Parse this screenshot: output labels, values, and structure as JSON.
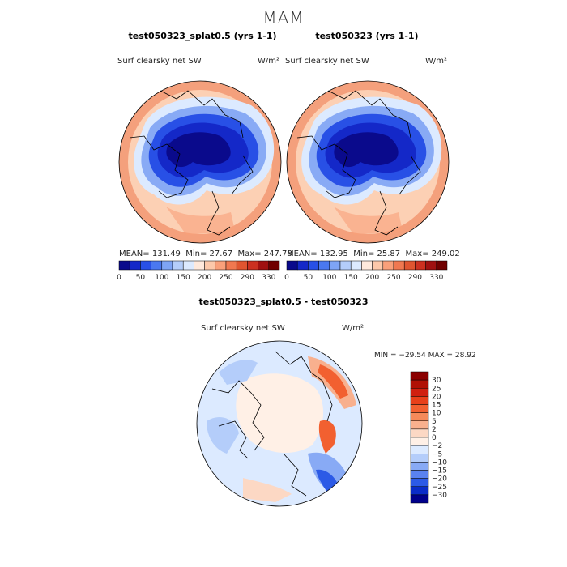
{
  "page": {
    "season_title": "MAM"
  },
  "panels": {
    "left": {
      "title": "test050323_splat0.5 (yrs 1-1)",
      "field_label": "Surf clearsky net SW",
      "units": "W/m²",
      "stats": {
        "mean_label": "MEAN=",
        "mean": "131.49",
        "min_label": "Min=",
        "min": "27.67",
        "max_label": "Max=",
        "max": "247.78"
      }
    },
    "right": {
      "title": "test050323 (yrs 1-1)",
      "field_label": "Surf clearsky net SW",
      "units": "W/m²",
      "stats": {
        "mean_label": "MEAN=",
        "mean": "132.95",
        "min_label": "Min=",
        "min": "25.87",
        "max_label": "Max=",
        "max": "249.02"
      }
    },
    "diff": {
      "title": "test050323_splat0.5 - test050323",
      "field_label": "Surf clearsky net SW",
      "units": "W/m²",
      "minmax": "MIN = −29.54 MAX =  28.92"
    }
  },
  "chart_data": [
    {
      "type": "heatmap",
      "title": "test050323_splat0.5 (yrs 1-1)",
      "projection": "north polar stereographic",
      "variable": "Surf clearsky net SW",
      "units": "W/m²",
      "mean": 131.49,
      "min": 27.67,
      "max": 247.78,
      "colorbar_ticks": [
        "0",
        "50",
        "100",
        "150",
        "200",
        "250",
        "290",
        "330"
      ],
      "colorbar_colors": [
        "#0a0a8c",
        "#1428c8",
        "#2850e6",
        "#4a78f0",
        "#7ea4f5",
        "#b4cdfa",
        "#dceaff",
        "#ffe9dc",
        "#fcc8aa",
        "#f9a07a",
        "#f07850",
        "#e05530",
        "#cc3020",
        "#a01010",
        "#700000"
      ]
    },
    {
      "type": "heatmap",
      "title": "test050323 (yrs 1-1)",
      "projection": "north polar stereographic",
      "variable": "Surf clearsky net SW",
      "units": "W/m²",
      "mean": 132.95,
      "min": 25.87,
      "max": 249.02,
      "colorbar_ticks": [
        "0",
        "50",
        "100",
        "150",
        "200",
        "250",
        "290",
        "330"
      ],
      "colorbar_colors": [
        "#0a0a8c",
        "#1428c8",
        "#2850e6",
        "#4a78f0",
        "#7ea4f5",
        "#b4cdfa",
        "#dceaff",
        "#ffe9dc",
        "#fcc8aa",
        "#f9a07a",
        "#f07850",
        "#e05530",
        "#cc3020",
        "#a01010",
        "#700000"
      ]
    },
    {
      "type": "heatmap",
      "title": "test050323_splat0.5 - test050323",
      "projection": "north polar stereographic",
      "variable": "Surf clearsky net SW",
      "units": "W/m²",
      "min": -29.54,
      "max": 28.92,
      "colorbar_ticks": [
        "30",
        "25",
        "20",
        "15",
        "10",
        "5",
        "2",
        "0",
        "−2",
        "−5",
        "−10",
        "−15",
        "−20",
        "−25",
        "−30"
      ],
      "colorbar_colors": [
        "#8b0000",
        "#b01005",
        "#d02010",
        "#e8401a",
        "#f26030",
        "#f58a5a",
        "#f8b08e",
        "#fcd8c4",
        "#fff0e6",
        "#dceaff",
        "#b4cdfa",
        "#88aaf5",
        "#5a82f0",
        "#2c5ae6",
        "#0a2cc8",
        "#00008b"
      ]
    }
  ]
}
